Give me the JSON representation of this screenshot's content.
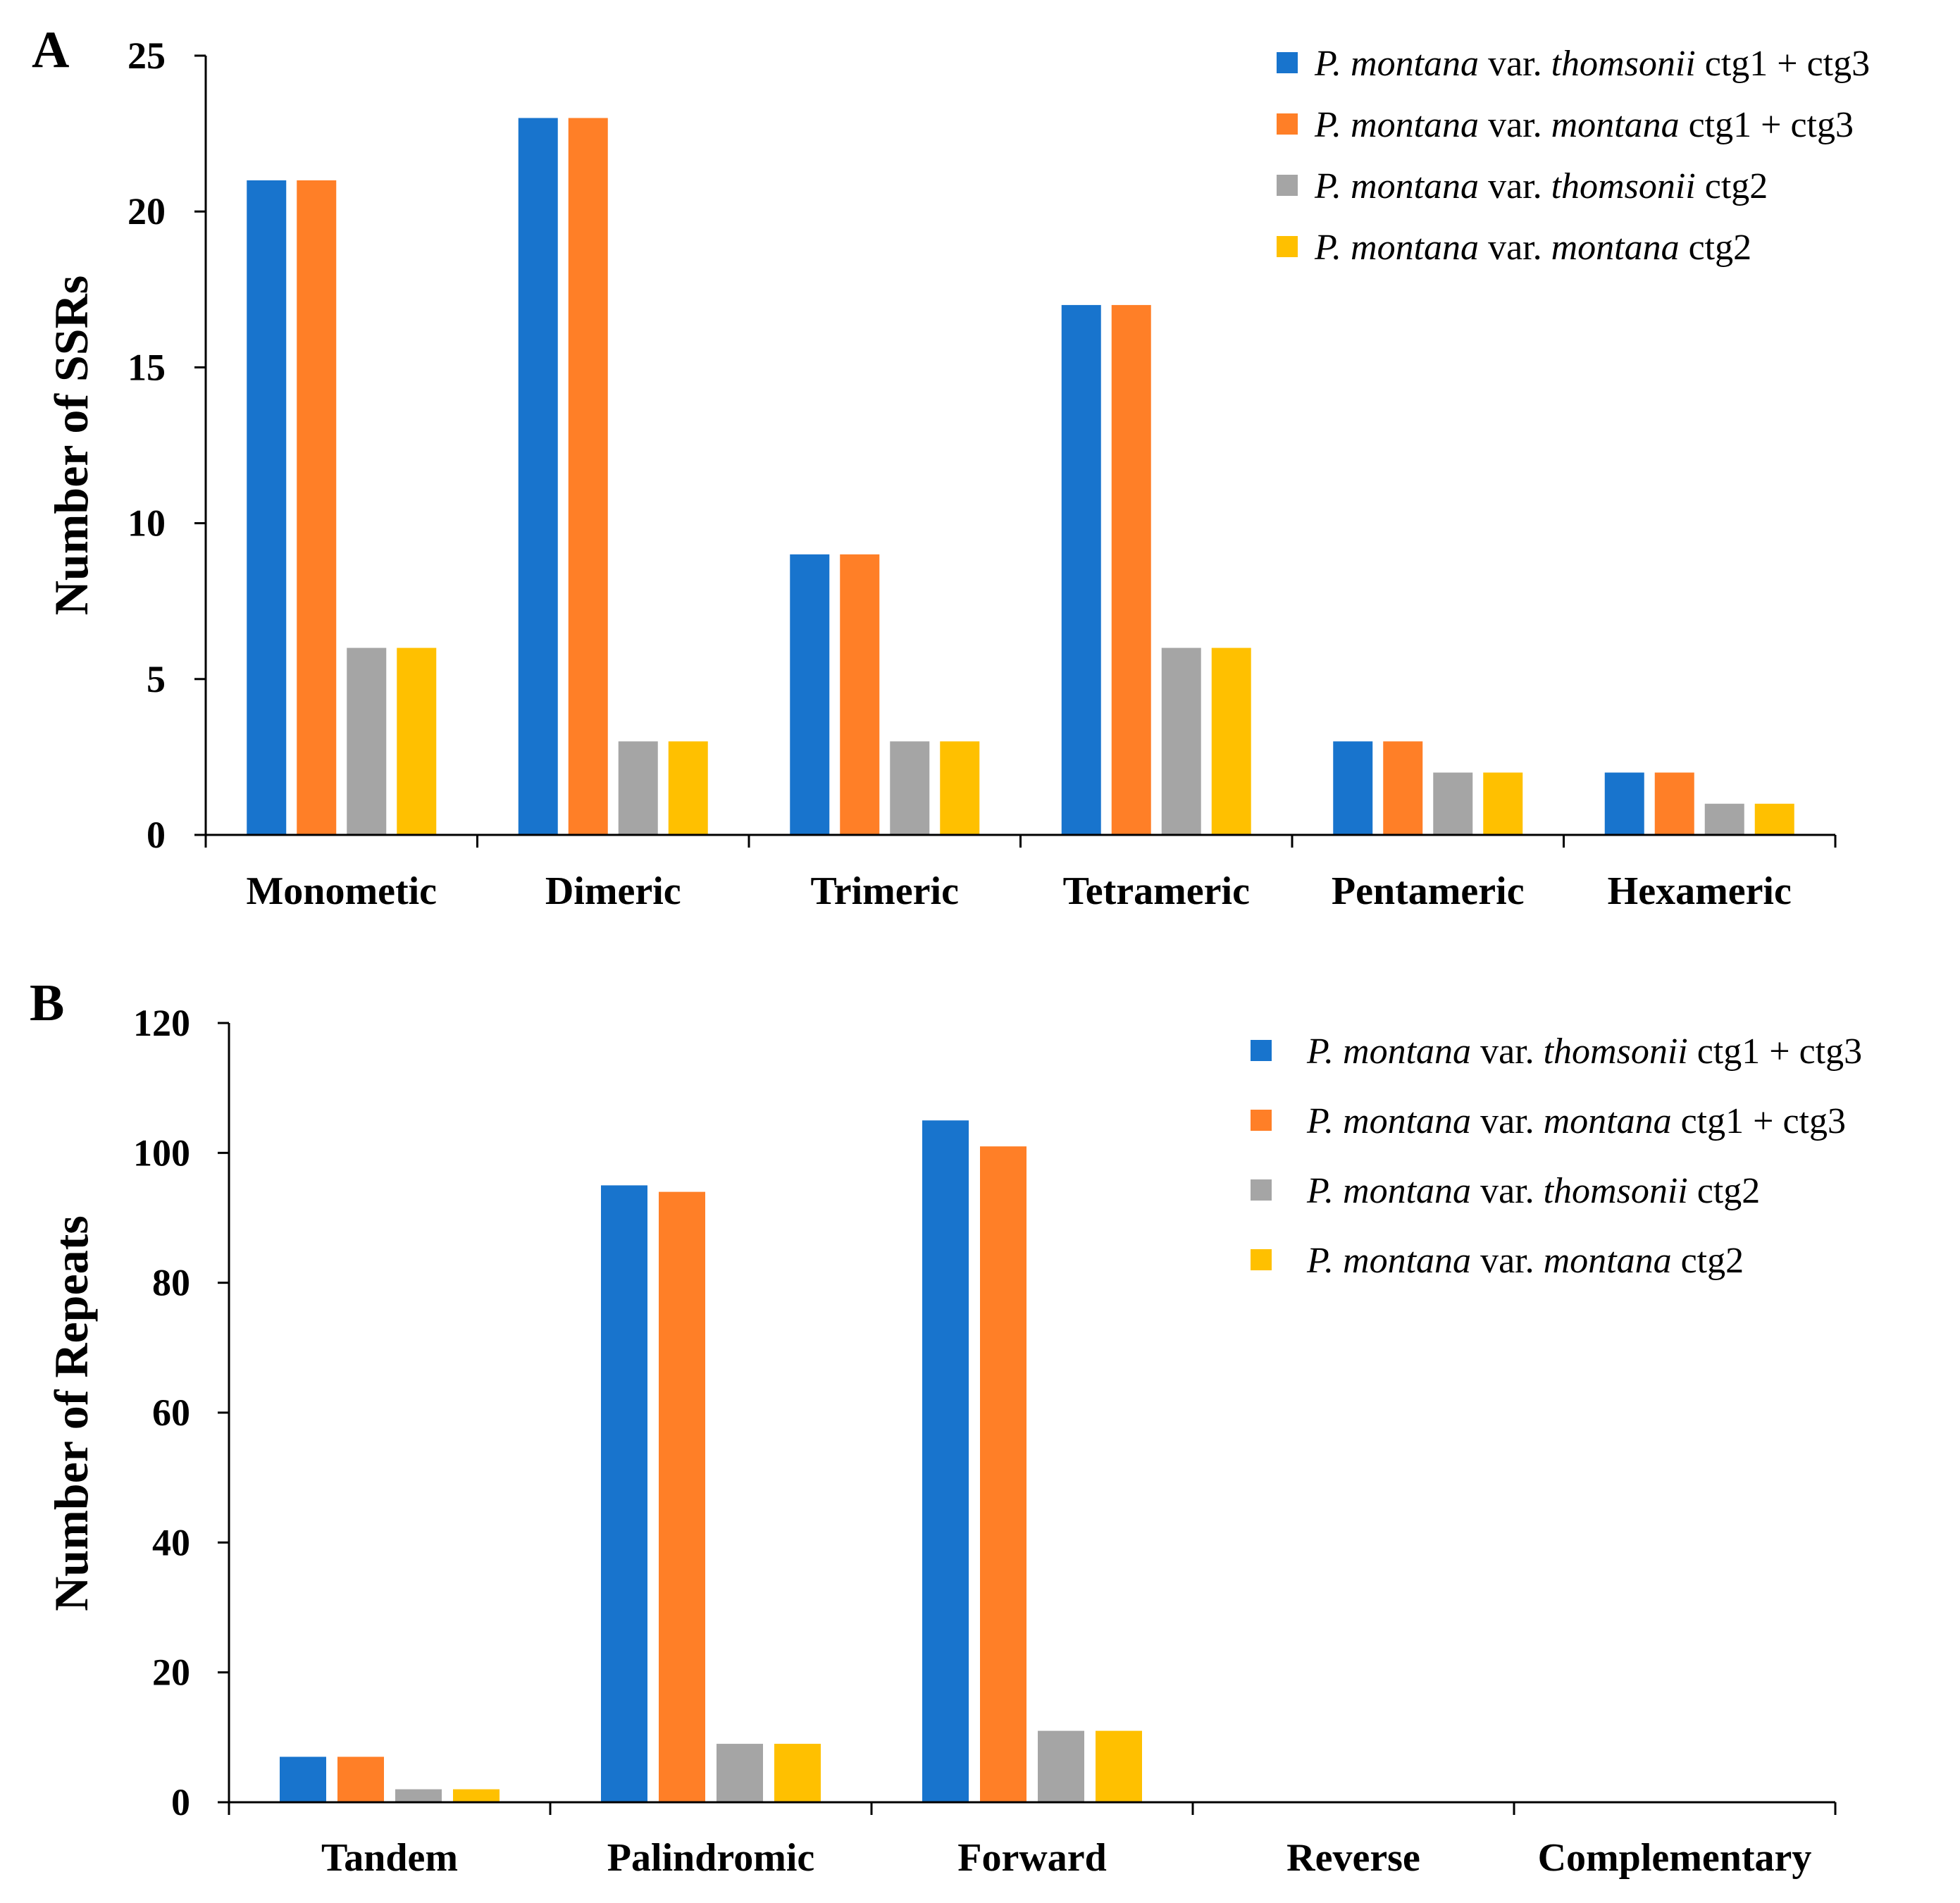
{
  "colors": {
    "series1": "#1874CD",
    "series2": "#FF7F27",
    "series3": "#A5A5A5",
    "series4": "#FFC000",
    "axis": "#000000"
  },
  "chart_data": [
    {
      "panel_label": "A",
      "type": "bar",
      "title": "",
      "xlabel": "",
      "ylabel": "Number of SSRs",
      "ylim": [
        0,
        25
      ],
      "yticks": [
        0,
        5,
        10,
        15,
        20,
        25
      ],
      "grid": false,
      "legend_position": "top-right",
      "categories": [
        "Monometic",
        "Dimeric",
        "Trimeric",
        "Tetrameric",
        "Pentameric",
        "Hexameric"
      ],
      "series": [
        {
          "name": "P. montana var. thomsonii ctg1 + ctg3",
          "values": [
            21,
            23,
            9,
            17,
            3,
            2
          ]
        },
        {
          "name": "P. montana var. montana ctg1 + ctg3",
          "values": [
            21,
            23,
            9,
            17,
            3,
            2
          ]
        },
        {
          "name": "P. montana var. thomsonii ctg2",
          "values": [
            6,
            3,
            3,
            6,
            2,
            1
          ]
        },
        {
          "name": "P. montana var. montana ctg2",
          "values": [
            6,
            3,
            3,
            6,
            2,
            1
          ]
        }
      ]
    },
    {
      "panel_label": "B",
      "type": "bar",
      "title": "",
      "xlabel": "",
      "ylabel": "Number of Repeats",
      "ylim": [
        0,
        120
      ],
      "yticks": [
        0,
        20,
        40,
        60,
        80,
        100,
        120
      ],
      "grid": false,
      "legend_position": "top-right",
      "categories": [
        "Tandem",
        "Palindromic",
        "Forward",
        "Reverse",
        "Complementary"
      ],
      "series": [
        {
          "name": "P. montana var. thomsonii ctg1 + ctg3",
          "values": [
            7,
            95,
            105,
            0,
            0
          ]
        },
        {
          "name": "P. montana var. montana ctg1 + ctg3",
          "values": [
            7,
            94,
            101,
            0,
            0
          ]
        },
        {
          "name": "P. montana var. thomsonii ctg2",
          "values": [
            2,
            9,
            11,
            0,
            0
          ]
        },
        {
          "name": "P. montana var. montana ctg2",
          "values": [
            2,
            9,
            11,
            0,
            0
          ]
        }
      ]
    }
  ],
  "legends": [
    [
      [
        {
          "t": "P. montana",
          "i": true
        },
        {
          "t": " var. ",
          "i": false
        },
        {
          "t": "thomsonii",
          "i": true
        },
        {
          "t": " ctg1 + ctg3",
          "i": false
        }
      ],
      [
        {
          "t": "P. montana",
          "i": true
        },
        {
          "t": " var. ",
          "i": false
        },
        {
          "t": "montana",
          "i": true
        },
        {
          "t": " ctg1 + ctg3",
          "i": false
        }
      ],
      [
        {
          "t": "P. montana",
          "i": true
        },
        {
          "t": " var. ",
          "i": false
        },
        {
          "t": "thomsonii",
          "i": true
        },
        {
          "t": " ctg2",
          "i": false
        }
      ],
      [
        {
          "t": "P. montana",
          "i": true
        },
        {
          "t": " var. ",
          "i": false
        },
        {
          "t": "montana",
          "i": true
        },
        {
          "t": " ctg2",
          "i": false
        }
      ]
    ],
    [
      [
        {
          "t": "P. montana",
          "i": true
        },
        {
          "t": " var. ",
          "i": false
        },
        {
          "t": "thomsonii",
          "i": true
        },
        {
          "t": " ctg1 + ctg3",
          "i": false
        }
      ],
      [
        {
          "t": "P. montana",
          "i": true
        },
        {
          "t": " var. ",
          "i": false
        },
        {
          "t": "montana",
          "i": true
        },
        {
          "t": " ctg1 + ctg3",
          "i": false
        }
      ],
      [
        {
          "t": "P. montana",
          "i": true
        },
        {
          "t": " var. ",
          "i": false
        },
        {
          "t": "thomsonii",
          "i": true
        },
        {
          "t": " ctg2",
          "i": false
        }
      ],
      [
        {
          "t": "P. montana",
          "i": true
        },
        {
          "t": " var. ",
          "i": false
        },
        {
          "t": "montana",
          "i": true
        },
        {
          "t": " ctg2",
          "i": false
        }
      ]
    ]
  ]
}
